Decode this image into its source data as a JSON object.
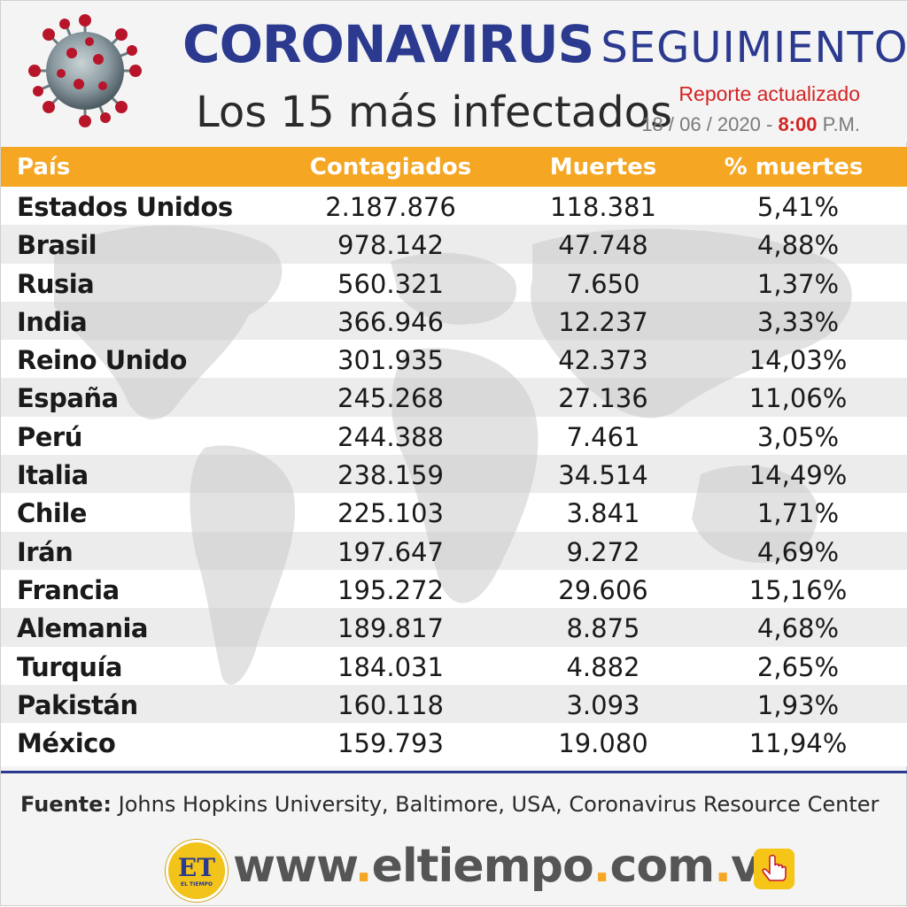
{
  "header": {
    "title_bold": "CORONAVIRUS",
    "title_light": "SEGUIMIENTO",
    "subtitle": "Los 15 más infectados",
    "report_label": "Reporte actualizado",
    "report_date": "18 / 06 / 2020 -",
    "report_time": "8:00",
    "report_ampm": "P.M."
  },
  "table": {
    "headers": {
      "pais": "País",
      "contagiados": "Contagiados",
      "muertes": "Muertes",
      "pct": "% muertes"
    },
    "rows": [
      {
        "pais": "Estados Unidos",
        "contagiados": "2.187.876",
        "muertes": "118.381",
        "pct": "5,41%"
      },
      {
        "pais": "Brasil",
        "contagiados": "978.142",
        "muertes": "47.748",
        "pct": "4,88%"
      },
      {
        "pais": "Rusia",
        "contagiados": "560.321",
        "muertes": "7.650",
        "pct": "1,37%"
      },
      {
        "pais": "India",
        "contagiados": "366.946",
        "muertes": "12.237",
        "pct": "3,33%"
      },
      {
        "pais": "Reino Unido",
        "contagiados": "301.935",
        "muertes": "42.373",
        "pct": "14,03%"
      },
      {
        "pais": "España",
        "contagiados": "245.268",
        "muertes": "27.136",
        "pct": "11,06%"
      },
      {
        "pais": "Perú",
        "contagiados": "244.388",
        "muertes": "7.461",
        "pct": "3,05%"
      },
      {
        "pais": "Italia",
        "contagiados": "238.159",
        "muertes": "34.514",
        "pct": "14,49%"
      },
      {
        "pais": "Chile",
        "contagiados": "225.103",
        "muertes": "3.841",
        "pct": "1,71%"
      },
      {
        "pais": "Irán",
        "contagiados": "197.647",
        "muertes": "9.272",
        "pct": "4,69%"
      },
      {
        "pais": "Francia",
        "contagiados": "195.272",
        "muertes": "29.606",
        "pct": "15,16%"
      },
      {
        "pais": "Alemania",
        "contagiados": "189.817",
        "muertes": "8.875",
        "pct": "4,68%"
      },
      {
        "pais": "Turquía",
        "contagiados": "184.031",
        "muertes": "4.882",
        "pct": "2,65%"
      },
      {
        "pais": "Pakistán",
        "contagiados": "160.118",
        "muertes": "3.093",
        "pct": "1,93%"
      },
      {
        "pais": "México",
        "contagiados": "159.793",
        "muertes": "19.080",
        "pct": "11,94%"
      }
    ]
  },
  "source": {
    "label": "Fuente:",
    "text": "Johns Hopkins University, Baltimore, USA, Coronavirus Resource Center"
  },
  "footer": {
    "logo_text": "ET",
    "logo_small": "EL TIEMPO",
    "url_1": "www",
    "url_dot1": ".",
    "url_2": "eltiempo",
    "url_dot2": ".",
    "url_3": "com",
    "url_dot3": ".",
    "url_4": "ve"
  },
  "colors": {
    "brand_blue": "#2b3a8f",
    "header_orange": "#f5a623",
    "accent_red": "#d42424"
  }
}
